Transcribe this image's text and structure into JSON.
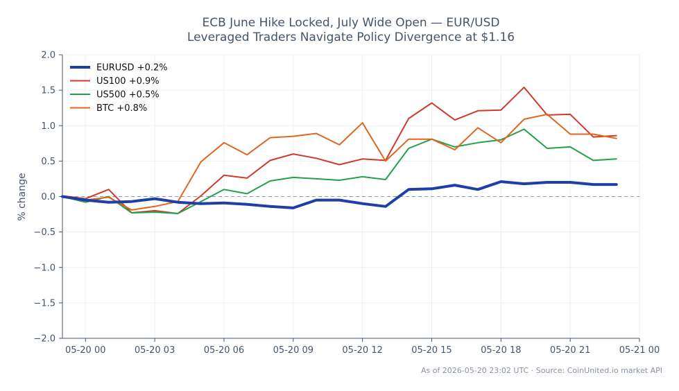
{
  "chart_data": {
    "type": "line",
    "title": [
      "ECB June Hike Locked, July Wide Open — EUR/USD",
      "Leveraged Traders Navigate Policy Divergence at $1.16"
    ],
    "ylabel": "% change",
    "xlabel": "",
    "ylim": [
      -2.0,
      2.0
    ],
    "xlim": [
      -1.0,
      24.0
    ],
    "yticks": [
      -2.0,
      -1.5,
      -1.0,
      -0.5,
      0.0,
      0.5,
      1.0,
      1.5,
      2.0
    ],
    "ytick_labels": [
      "−2.0",
      "−1.5",
      "−1.0",
      "−0.5",
      "0.0",
      "0.5",
      "1.0",
      "1.5",
      "2.0"
    ],
    "xticks": [
      0,
      3,
      6,
      9,
      12,
      15,
      18,
      21,
      24
    ],
    "xtick_labels": [
      "05-20 00",
      "05-20 03",
      "05-20 06",
      "05-20 09",
      "05-20 12",
      "05-20 15",
      "05-20 18",
      "05-20 21",
      "05-21 00"
    ],
    "x_label_hours": [
      -1,
      0,
      1,
      2,
      3,
      4,
      5,
      6,
      7,
      8,
      9,
      10,
      11,
      12,
      13,
      14,
      15,
      16,
      17,
      18,
      19,
      20,
      21,
      22,
      23
    ],
    "x": [
      "05-19 23",
      "05-20 00",
      "05-20 01",
      "05-20 02",
      "05-20 03",
      "05-20 04",
      "05-20 05",
      "05-20 06",
      "05-20 07",
      "05-20 08",
      "05-20 09",
      "05-20 10",
      "05-20 11",
      "05-20 12",
      "05-20 13",
      "05-20 14",
      "05-20 15",
      "05-20 16",
      "05-20 17",
      "05-20 18",
      "05-20 19",
      "05-20 20",
      "05-20 21",
      "05-20 22",
      "05-20 23"
    ],
    "zero_line": true,
    "grid": true,
    "legend_position": "top-left",
    "series": [
      {
        "name": "EURUSD +0.2%",
        "color": "#1f3fa8",
        "width": 4,
        "values": [
          0.0,
          -0.05,
          -0.08,
          -0.07,
          -0.03,
          -0.08,
          -0.1,
          -0.09,
          -0.11,
          -0.14,
          -0.16,
          -0.05,
          -0.05,
          -0.1,
          -0.14,
          0.1,
          0.11,
          0.16,
          0.1,
          0.21,
          0.18,
          0.2,
          0.2,
          0.17,
          0.17
        ]
      },
      {
        "name": "US100 +0.9%",
        "color": "#d03a2b",
        "width": 2,
        "values": [
          0.01,
          -0.03,
          0.1,
          -0.23,
          -0.2,
          -0.24,
          0.01,
          0.3,
          0.26,
          0.51,
          0.6,
          0.54,
          0.45,
          0.53,
          0.51,
          1.1,
          1.32,
          1.08,
          1.21,
          1.22,
          1.54,
          1.15,
          1.16,
          0.84,
          0.86
        ]
      },
      {
        "name": "US500 +0.5%",
        "color": "#22a04b",
        "width": 2,
        "values": [
          0.0,
          -0.08,
          0.0,
          -0.23,
          -0.22,
          -0.24,
          -0.07,
          0.1,
          0.04,
          0.22,
          0.27,
          0.25,
          0.23,
          0.28,
          0.24,
          0.68,
          0.81,
          0.7,
          0.76,
          0.8,
          0.95,
          0.68,
          0.7,
          0.51,
          0.53
        ]
      },
      {
        "name": "BTC +0.8%",
        "color": "#e0651e",
        "width": 2,
        "values": [
          0.0,
          -0.05,
          -0.01,
          -0.19,
          -0.14,
          -0.07,
          0.49,
          0.76,
          0.59,
          0.83,
          0.85,
          0.89,
          0.73,
          1.04,
          0.5,
          0.81,
          0.81,
          0.66,
          0.97,
          0.76,
          1.09,
          1.16,
          0.88,
          0.88,
          0.82
        ]
      }
    ]
  },
  "footer": "As of 2026-05-20 23:02 UTC · Source: CoinUnited.io market API"
}
